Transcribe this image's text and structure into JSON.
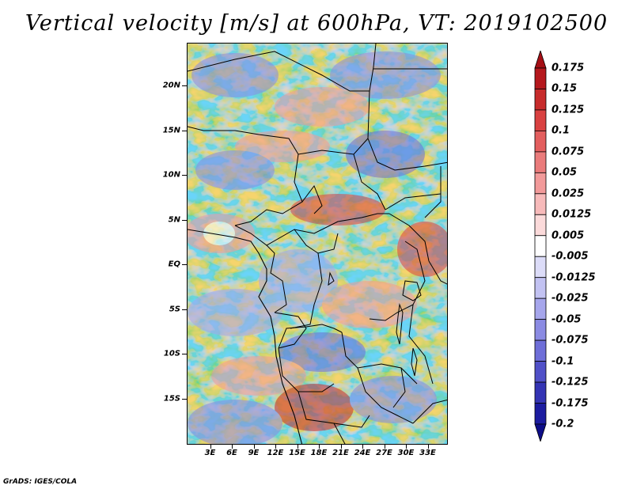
{
  "title": "Vertical velocity [m/s] at 600hPa, VT: 2019102500",
  "credit": "GrADS: IGES/COLA",
  "map": {
    "lon_range": [
      0,
      36
    ],
    "lat_range": [
      -20,
      25
    ],
    "lat_ticks": [
      {
        "value": 20,
        "label": "20N"
      },
      {
        "value": 15,
        "label": "15N"
      },
      {
        "value": 10,
        "label": "10N"
      },
      {
        "value": 5,
        "label": "5N"
      },
      {
        "value": 0,
        "label": "EQ"
      },
      {
        "value": -5,
        "label": "5S"
      },
      {
        "value": -10,
        "label": "10S"
      },
      {
        "value": -15,
        "label": "15S"
      }
    ],
    "lon_ticks": [
      {
        "value": 3,
        "label": "3E"
      },
      {
        "value": 6,
        "label": "6E"
      },
      {
        "value": 9,
        "label": "9E"
      },
      {
        "value": 12,
        "label": "12E"
      },
      {
        "value": 15,
        "label": "15E"
      },
      {
        "value": 18,
        "label": "18E"
      },
      {
        "value": 21,
        "label": "21E"
      },
      {
        "value": 24,
        "label": "24E"
      },
      {
        "value": 27,
        "label": "27E"
      },
      {
        "value": 30,
        "label": "30E"
      },
      {
        "value": 33,
        "label": "33E"
      }
    ]
  },
  "colorbar": {
    "labels": [
      "0.175",
      "0.15",
      "0.125",
      "0.1",
      "0.075",
      "0.05",
      "0.025",
      "0.0125",
      "0.005",
      "-0.005",
      "-0.0125",
      "-0.025",
      "-0.05",
      "-0.075",
      "-0.1",
      "-0.125",
      "-0.175",
      "-0.2"
    ],
    "colors": [
      "#a50f15",
      "#b5181d",
      "#c72b2b",
      "#d94141",
      "#e35e5e",
      "#ea7b7b",
      "#f29a9a",
      "#f7baba",
      "#fbdada",
      "#ffffff",
      "#dcdcf8",
      "#c2c2f2",
      "#a6a6ec",
      "#8b8be3",
      "#6e6ed8",
      "#5050c8",
      "#3434b4",
      "#1c1ca0",
      "#0d0d88"
    ]
  }
}
